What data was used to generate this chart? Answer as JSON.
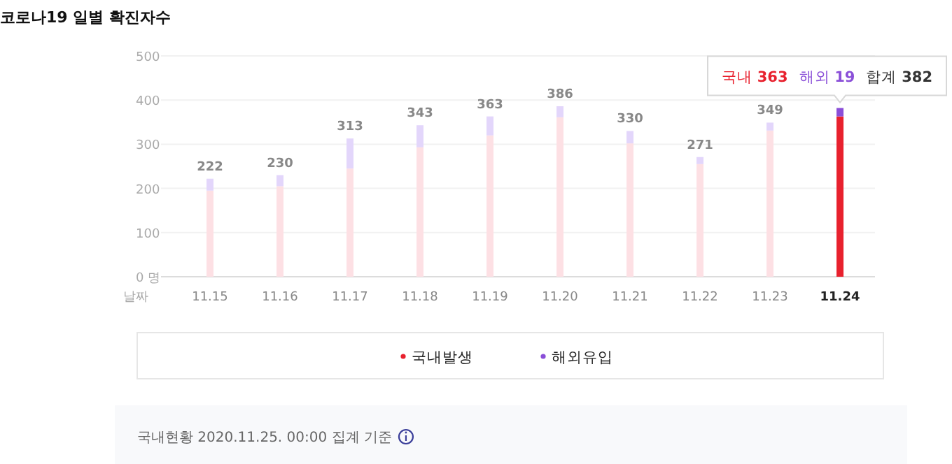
{
  "chart_data": {
    "type": "bar",
    "title": "코로나19 일별 확진자수",
    "xlabel": "날짜",
    "categories": [
      "11.15",
      "11.16",
      "11.17",
      "11.18",
      "11.19",
      "11.20",
      "11.21",
      "11.22",
      "11.23",
      "11.24"
    ],
    "stacked": true,
    "series": [
      {
        "name": "국내발생",
        "color": "#e8212e",
        "colors": [
          "#fde0e4",
          "#fde0e4",
          "#fde0e4",
          "#fde0e4",
          "#fde0e4",
          "#fde0e4",
          "#fde0e4",
          "#fde0e4",
          "#fde0e4",
          "#e8212e"
        ],
        "values": [
          195,
          205,
          245,
          293,
          320,
          361,
          302,
          255,
          331,
          363
        ]
      },
      {
        "name": "해외유입",
        "color": "#8a4fd8",
        "colors": [
          "#e3d6fb",
          "#e3d6fb",
          "#e3d6fb",
          "#e3d6fb",
          "#e3d6fb",
          "#e3d6fb",
          "#e3d6fb",
          "#e3d6fb",
          "#e3d6fb",
          "#8a4fd8"
        ],
        "values": [
          27,
          25,
          68,
          50,
          43,
          25,
          28,
          16,
          18,
          19
        ]
      }
    ],
    "totals": [
      "222",
      "230",
      "313",
      "343",
      "363",
      "386",
      "330",
      "271",
      "349",
      null
    ],
    "ylim": [
      0,
      500
    ],
    "yticks": [
      {
        "value": 0,
        "label": "0 명"
      },
      100,
      200,
      300,
      400,
      500
    ],
    "grid": "y",
    "legend": "bottom",
    "annotations": [
      "국내 **363**",
      "해외 **19**",
      "합계 **382**",
      "국내현황 2020.11.25. 00:00 집계 기준"
    ]
  }
}
